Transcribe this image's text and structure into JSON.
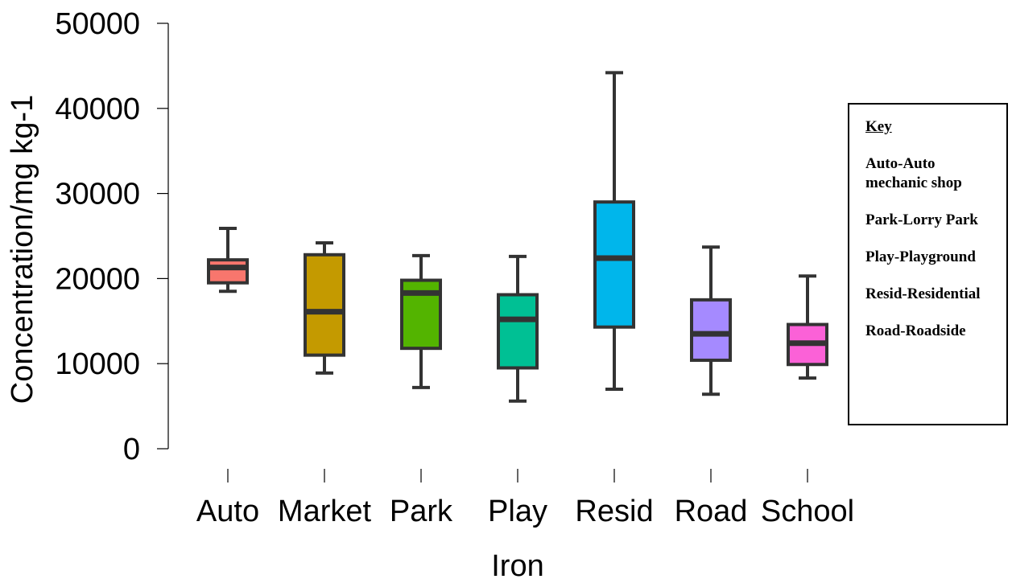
{
  "chart_data": {
    "type": "boxplot",
    "title": "",
    "xlabel": "Iron",
    "ylabel": "Concentration/mg kg-1",
    "ylim": [
      0,
      50000
    ],
    "yticks": [
      0,
      10000,
      20000,
      30000,
      40000,
      50000
    ],
    "ytick_labels": [
      "0",
      "10000",
      "20000",
      "30000",
      "40000",
      "50000"
    ],
    "grid": false,
    "categories": [
      "Auto",
      "Market",
      "Park",
      "Play",
      "Resid",
      "Road",
      "School"
    ],
    "boxes": [
      {
        "category": "Auto",
        "min": 18500,
        "q1": 19500,
        "median": 21300,
        "q3": 22200,
        "max": 25900,
        "color": "#F8766D"
      },
      {
        "category": "Market",
        "min": 8900,
        "q1": 11000,
        "median": 16100,
        "q3": 22800,
        "max": 24200,
        "color": "#C49A00"
      },
      {
        "category": "Park",
        "min": 7200,
        "q1": 11800,
        "median": 18300,
        "q3": 19800,
        "max": 22700,
        "color": "#53B400"
      },
      {
        "category": "Play",
        "min": 5600,
        "q1": 9500,
        "median": 15200,
        "q3": 18100,
        "max": 22600,
        "color": "#00C094"
      },
      {
        "category": "Resid",
        "min": 7000,
        "q1": 14300,
        "median": 22400,
        "q3": 29000,
        "max": 44200,
        "color": "#00B6EB"
      },
      {
        "category": "Road",
        "min": 6400,
        "q1": 10400,
        "median": 13500,
        "q3": 17500,
        "max": 23700,
        "color": "#A58AFF"
      },
      {
        "category": "School",
        "min": 8300,
        "q1": 9900,
        "median": 12400,
        "q3": 14600,
        "max": 20300,
        "color": "#FB61D7"
      }
    ]
  },
  "key": {
    "title": "Key",
    "entries": [
      "Auto-Auto mechanic shop",
      "Park-Lorry Park",
      "Play-Playground",
      "Resid-Residential",
      "Road-Roadside"
    ]
  }
}
